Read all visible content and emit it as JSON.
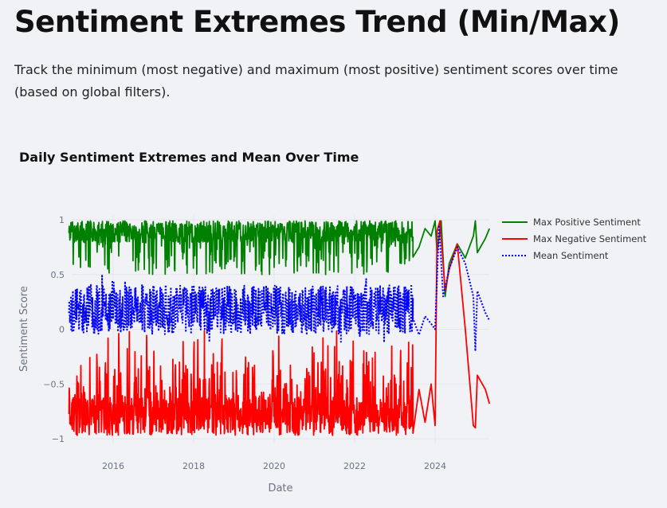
{
  "header": {
    "title": "Sentiment Extremes Trend (Min/Max)",
    "description": "Track the minimum (most negative) and maximum (most positive) sentiment scores over time (based on global filters)."
  },
  "chart_data": {
    "type": "line",
    "title": "Daily Sentiment Extremes and Mean Over Time",
    "xlabel": "Date",
    "ylabel": "Sentiment Score",
    "xlim": [
      2014.9,
      2025.4
    ],
    "ylim": [
      -1.05,
      1.02
    ],
    "x_ticks": [
      "2016",
      "2018",
      "2020",
      "2022",
      "2024"
    ],
    "y_ticks": [
      "1",
      "0.5",
      "0",
      "−0.5",
      "−1"
    ],
    "grid": true,
    "legend_position": "top-right",
    "series": [
      {
        "name": "Max Positive Sentiment",
        "color": "#008000",
        "dash": "solid",
        "dense_range": {
          "x_start": 2014.9,
          "x_end": 2023.45,
          "low": 0.5,
          "high": 0.99
        },
        "sparse_points": [
          [
            2023.45,
            0.66
          ],
          [
            2023.6,
            0.75
          ],
          [
            2023.75,
            0.92
          ],
          [
            2023.9,
            0.85
          ],
          [
            2024.0,
            0.99
          ],
          [
            2024.05,
            0.7
          ],
          [
            2024.15,
            0.99
          ],
          [
            2024.25,
            0.3
          ],
          [
            2024.35,
            0.6
          ],
          [
            2024.55,
            0.78
          ],
          [
            2024.75,
            0.65
          ],
          [
            2024.95,
            0.85
          ],
          [
            2025.0,
            0.99
          ],
          [
            2025.05,
            0.7
          ],
          [
            2025.25,
            0.83
          ],
          [
            2025.35,
            0.92
          ]
        ]
      },
      {
        "name": "Max Negative Sentiment",
        "color": "#ff0000",
        "dash": "solid",
        "dense_range": {
          "x_start": 2014.9,
          "x_end": 2023.45,
          "low": -0.97,
          "high": -0.3
        },
        "sparse_points": [
          [
            2023.45,
            -0.95
          ],
          [
            2023.6,
            -0.55
          ],
          [
            2023.75,
            -0.85
          ],
          [
            2023.9,
            -0.5
          ],
          [
            2024.0,
            -0.88
          ],
          [
            2024.05,
            0.9
          ],
          [
            2024.12,
            0.99
          ],
          [
            2024.25,
            0.35
          ],
          [
            2024.35,
            0.55
          ],
          [
            2024.55,
            0.78
          ],
          [
            2024.75,
            0.0
          ],
          [
            2024.95,
            -0.88
          ],
          [
            2025.0,
            -0.9
          ],
          [
            2025.05,
            -0.42
          ],
          [
            2025.25,
            -0.55
          ],
          [
            2025.35,
            -0.68
          ]
        ]
      },
      {
        "name": "Mean Sentiment",
        "color": "#0000ff",
        "dash": "dot",
        "dense_range": {
          "x_start": 2014.9,
          "x_end": 2023.45,
          "low": -0.12,
          "high": 0.5
        },
        "sparse_points": [
          [
            2023.45,
            0.1
          ],
          [
            2023.6,
            -0.05
          ],
          [
            2023.75,
            0.12
          ],
          [
            2023.9,
            0.05
          ],
          [
            2024.0,
            0.0
          ],
          [
            2024.1,
            0.95
          ],
          [
            2024.2,
            0.3
          ],
          [
            2024.35,
            0.55
          ],
          [
            2024.55,
            0.75
          ],
          [
            2024.75,
            0.6
          ],
          [
            2024.95,
            0.3
          ],
          [
            2025.0,
            -0.2
          ],
          [
            2025.05,
            0.35
          ],
          [
            2025.25,
            0.15
          ],
          [
            2025.35,
            0.08
          ]
        ]
      }
    ]
  }
}
